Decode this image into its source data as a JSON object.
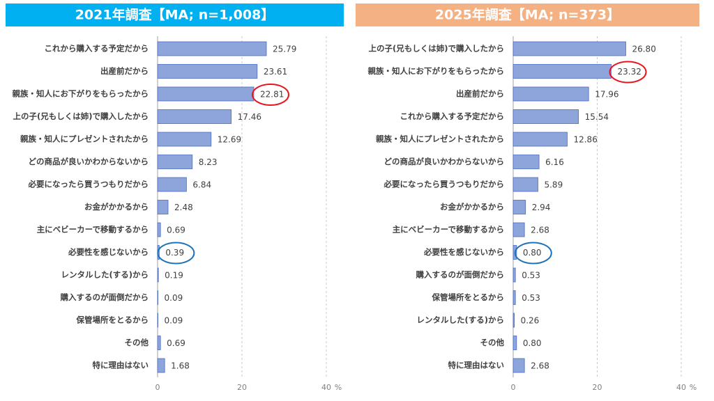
{
  "chart_data": [
    {
      "type": "barh",
      "title": "2021年調査【MA; n=1,008】",
      "title_bg": "#00b0f0",
      "categories": [
        "これから購入する予定だから",
        "出産前だから",
        "親族・知人にお下がりをもらったから",
        "上の子(兄もしくは姉)で購入したから",
        "親族・知人にプレゼントされたから",
        "どの商品が良いかわからないから",
        "必要になったら買うつもりだから",
        "お金がかかるから",
        "主にベビーカーで移動するから",
        "必要性を感じないから",
        "レンタルした(する)から",
        "購入するのが面倒だから",
        "保管場所をとるから",
        "その他",
        "特に理由はない"
      ],
      "values": [
        25.79,
        23.61,
        22.81,
        17.46,
        12.69,
        8.23,
        6.84,
        2.48,
        0.69,
        0.39,
        0.19,
        0.09,
        0.09,
        0.69,
        1.68
      ],
      "value_labels": [
        "25.79",
        "23.61",
        "22.81",
        "17.46",
        "12.69",
        "8.23",
        "6.84",
        "2.48",
        "0.69",
        "0.39",
        "0.19",
        "0.09",
        "0.09",
        "0.69",
        "1.68"
      ],
      "color": "#8ea5dc",
      "xlim": [
        0,
        40
      ],
      "xticks": [
        0,
        20,
        40
      ],
      "x_unit": "%",
      "grid": true,
      "circled": [
        {
          "index": 2,
          "color": "#e8141e"
        },
        {
          "index": 9,
          "color": "#1f72b8"
        }
      ]
    },
    {
      "type": "barh",
      "title": "2025年調査【MA; n=373】",
      "title_bg": "#f4b183",
      "categories": [
        "上の子(兄もしくは姉)で購入したから",
        "親族・知人にお下がりをもらったから",
        "出産前だから",
        "これから購入する予定だから",
        "親族・知人にプレゼントされたから",
        "どの商品が良いかわからないから",
        "必要になったら買うつもりだから",
        "お金がかかるから",
        "主にベビーカーで移動するから",
        "必要性を感じないから",
        "購入するのが面倒だから",
        "保管場所をとるから",
        "レンタルした(する)から",
        "その他",
        "特に理由はない"
      ],
      "values": [
        26.8,
        23.32,
        17.96,
        15.54,
        12.86,
        6.16,
        5.89,
        2.94,
        2.68,
        0.8,
        0.53,
        0.53,
        0.26,
        0.8,
        2.68
      ],
      "value_labels": [
        "26.80",
        "23.32",
        "17.96",
        "15.54",
        "12.86",
        "6.16",
        "5.89",
        "2.94",
        "2.68",
        "0.80",
        "0.53",
        "0.53",
        "0.26",
        "0.80",
        "2.68"
      ],
      "color": "#8ea5dc",
      "xlim": [
        0,
        40
      ],
      "xticks": [
        0,
        20,
        40
      ],
      "x_unit": "%",
      "grid": true,
      "circled": [
        {
          "index": 1,
          "color": "#e8141e"
        },
        {
          "index": 9,
          "color": "#1f72b8"
        }
      ]
    }
  ]
}
